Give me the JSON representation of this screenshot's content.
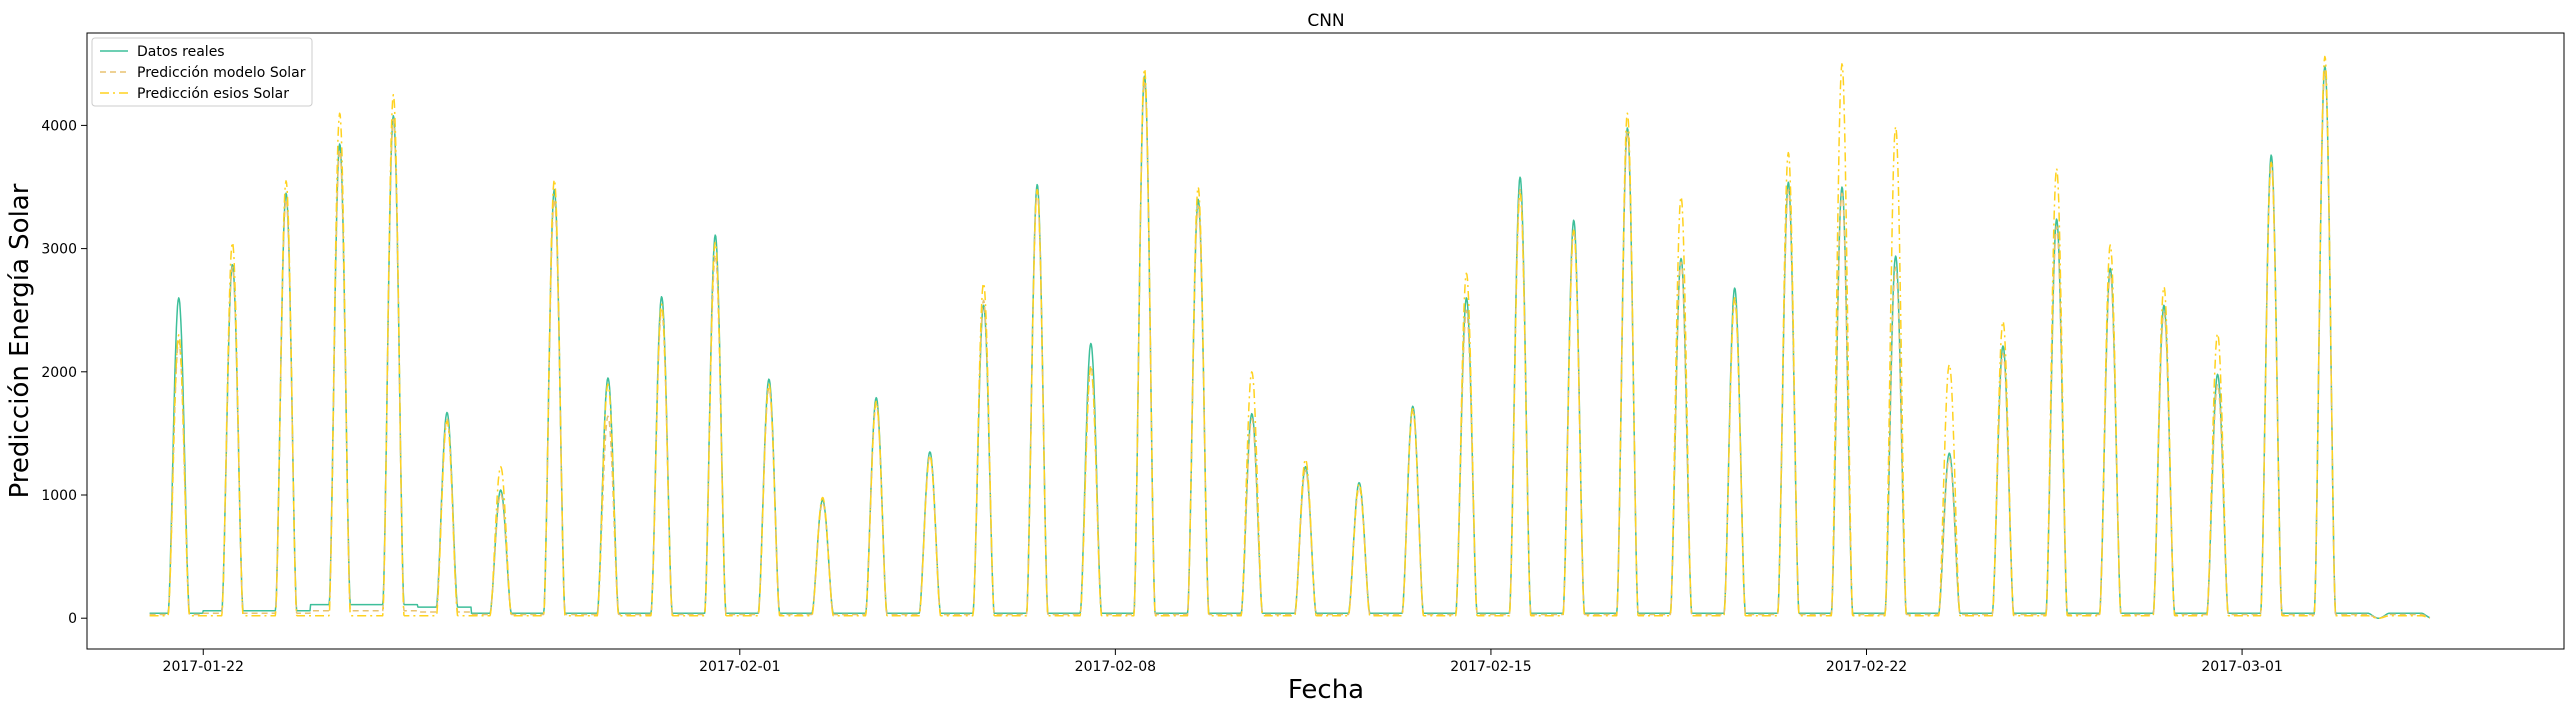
{
  "chart_data": {
    "type": "line",
    "title": "CNN",
    "xlabel": "Fecha",
    "ylabel": "Predicción Energía Solar",
    "xlim": [
      "2017-01-19T20:00",
      "2017-03-07T00:00"
    ],
    "ylim": [
      -250,
      4750
    ],
    "x_ticks": [
      "2017-01-22",
      "2017-02-01",
      "2017-02-08",
      "2017-02-15",
      "2017-02-22",
      "2017-03-01"
    ],
    "y_ticks": [
      0,
      1000,
      2000,
      3000,
      4000
    ],
    "grid": false,
    "legend_position": "top-left",
    "x_start": "2017-01-21",
    "x_end": "2017-03-04T12:00",
    "series": [
      {
        "name": "Datos reales",
        "color": "#3dbf9a",
        "style": "solid",
        "night_level": [
          40,
          60,
          60,
          110,
          110,
          90,
          40,
          40,
          40,
          40,
          40,
          40,
          40,
          40,
          40,
          40,
          40,
          40,
          40,
          40,
          40,
          40,
          40,
          40,
          40,
          40,
          40,
          40,
          40,
          40,
          40,
          40,
          40,
          40,
          40,
          40,
          40,
          40,
          40,
          40,
          40,
          40,
          40
        ],
        "daily_peaks": [
          2600,
          2870,
          3450,
          3850,
          4080,
          1670,
          1040,
          3480,
          1950,
          2610,
          3110,
          1940,
          960,
          1790,
          1350,
          2540,
          3520,
          2230,
          4400,
          3400,
          1660,
          1230,
          1100,
          1720,
          2600,
          3580,
          3230,
          3980,
          2920,
          2680,
          3540,
          3500,
          2940,
          1340,
          2210,
          3240,
          2840,
          2540,
          1980,
          3760,
          4480,
          0
        ]
      },
      {
        "name": "Predicción modelo Solar",
        "color": "#e8c270",
        "style": "dashed",
        "night_level": [
          30,
          40,
          40,
          60,
          60,
          50,
          30,
          30,
          30,
          30,
          30,
          30,
          30,
          30,
          30,
          30,
          30,
          30,
          30,
          30,
          30,
          30,
          30,
          30,
          30,
          30,
          30,
          30,
          30,
          30,
          30,
          30,
          30,
          30,
          30,
          30,
          30,
          30,
          30,
          30,
          30,
          30,
          30
        ],
        "daily_peaks": [
          2250,
          2850,
          3400,
          3800,
          4050,
          1620,
          1010,
          3400,
          1640,
          2500,
          2950,
          1870,
          940,
          1740,
          1320,
          2580,
          3460,
          2050,
          4350,
          3350,
          1620,
          1200,
          1060,
          1680,
          2500,
          3480,
          3150,
          3950,
          2890,
          2580,
          3480,
          3450,
          2850,
          1300,
          2150,
          3180,
          2800,
          2480,
          1900,
          3700,
          4450,
          0
        ]
      },
      {
        "name": "Predicción esios Solar",
        "color": "#ffd21f",
        "style": "dashdot",
        "night_level": [
          20,
          20,
          20,
          20,
          20,
          20,
          20,
          20,
          20,
          20,
          20,
          20,
          20,
          20,
          20,
          20,
          20,
          20,
          20,
          20,
          20,
          20,
          20,
          20,
          20,
          20,
          20,
          20,
          20,
          20,
          20,
          20,
          20,
          20,
          20,
          20,
          20,
          20,
          20,
          20,
          20,
          20,
          20
        ],
        "daily_peaks": [
          2300,
          3050,
          3550,
          4100,
          4250,
          1600,
          1230,
          3560,
          1900,
          2550,
          3050,
          1900,
          980,
          1760,
          1320,
          2720,
          3480,
          2030,
          4460,
          3500,
          2000,
          1290,
          1090,
          1700,
          2800,
          3450,
          3150,
          4100,
          3420,
          2600,
          3780,
          4500,
          3990,
          2060,
          2410,
          3650,
          3030,
          2690,
          2310,
          3700,
          4560,
          0
        ]
      }
    ]
  }
}
